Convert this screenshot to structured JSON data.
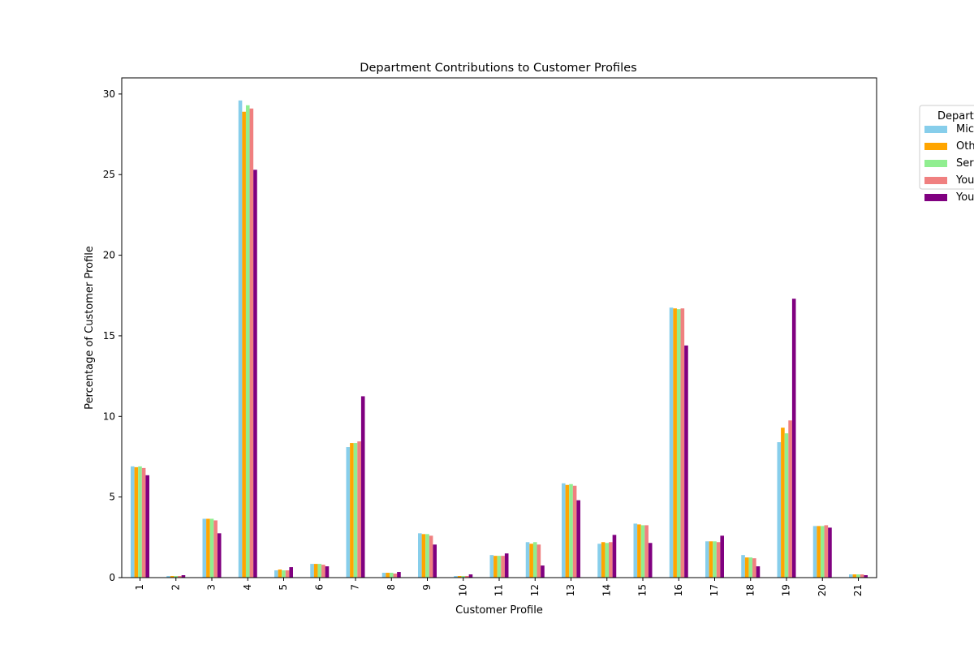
{
  "chart_data": {
    "type": "bar",
    "title": "Department Contributions to Customer Profiles",
    "xlabel": "Customer Profile",
    "ylabel": "Percentage of Customer Profile",
    "ylim": [
      0,
      31
    ],
    "yticks": [
      0,
      5,
      10,
      15,
      20,
      25,
      30
    ],
    "grid": false,
    "legend_placement": "outside-top-right (clipped)",
    "legend_title": "Depart",
    "categories": [
      "1",
      "2",
      "3",
      "4",
      "5",
      "6",
      "7",
      "8",
      "9",
      "10",
      "11",
      "12",
      "13",
      "14",
      "15",
      "16",
      "17",
      "18",
      "19",
      "20",
      "21"
    ],
    "series": [
      {
        "name": "Mic",
        "color": "#87ceeb",
        "values": [
          6.9,
          0.1,
          3.65,
          29.6,
          0.45,
          0.85,
          8.1,
          0.3,
          2.75,
          0.1,
          1.4,
          2.2,
          5.85,
          2.1,
          3.35,
          16.75,
          2.25,
          1.4,
          8.4,
          3.2,
          0.2
        ]
      },
      {
        "name": "Oth",
        "color": "#ffa500",
        "values": [
          6.85,
          0.1,
          3.65,
          28.9,
          0.5,
          0.85,
          8.35,
          0.3,
          2.7,
          0.1,
          1.35,
          2.1,
          5.75,
          2.2,
          3.3,
          16.7,
          2.25,
          1.25,
          9.3,
          3.2,
          0.2
        ]
      },
      {
        "name": "Ser",
        "color": "#90ee90",
        "values": [
          6.9,
          0.1,
          3.65,
          29.3,
          0.45,
          0.85,
          8.35,
          0.3,
          2.7,
          0.1,
          1.35,
          2.2,
          5.8,
          2.15,
          3.25,
          16.65,
          2.25,
          1.25,
          8.95,
          3.2,
          0.2
        ]
      },
      {
        "name": "You",
        "color": "#f08080",
        "values": [
          6.8,
          0.1,
          3.55,
          29.1,
          0.45,
          0.8,
          8.45,
          0.25,
          2.6,
          0.1,
          1.35,
          2.05,
          5.7,
          2.2,
          3.25,
          16.7,
          2.2,
          1.2,
          9.75,
          3.25,
          0.2
        ]
      },
      {
        "name": "You",
        "color": "#800080",
        "values": [
          6.35,
          0.15,
          2.75,
          25.3,
          0.65,
          0.7,
          11.25,
          0.35,
          2.05,
          0.2,
          1.5,
          0.75,
          4.8,
          2.65,
          2.15,
          14.4,
          2.6,
          0.7,
          17.3,
          3.1,
          0.15
        ]
      }
    ]
  }
}
